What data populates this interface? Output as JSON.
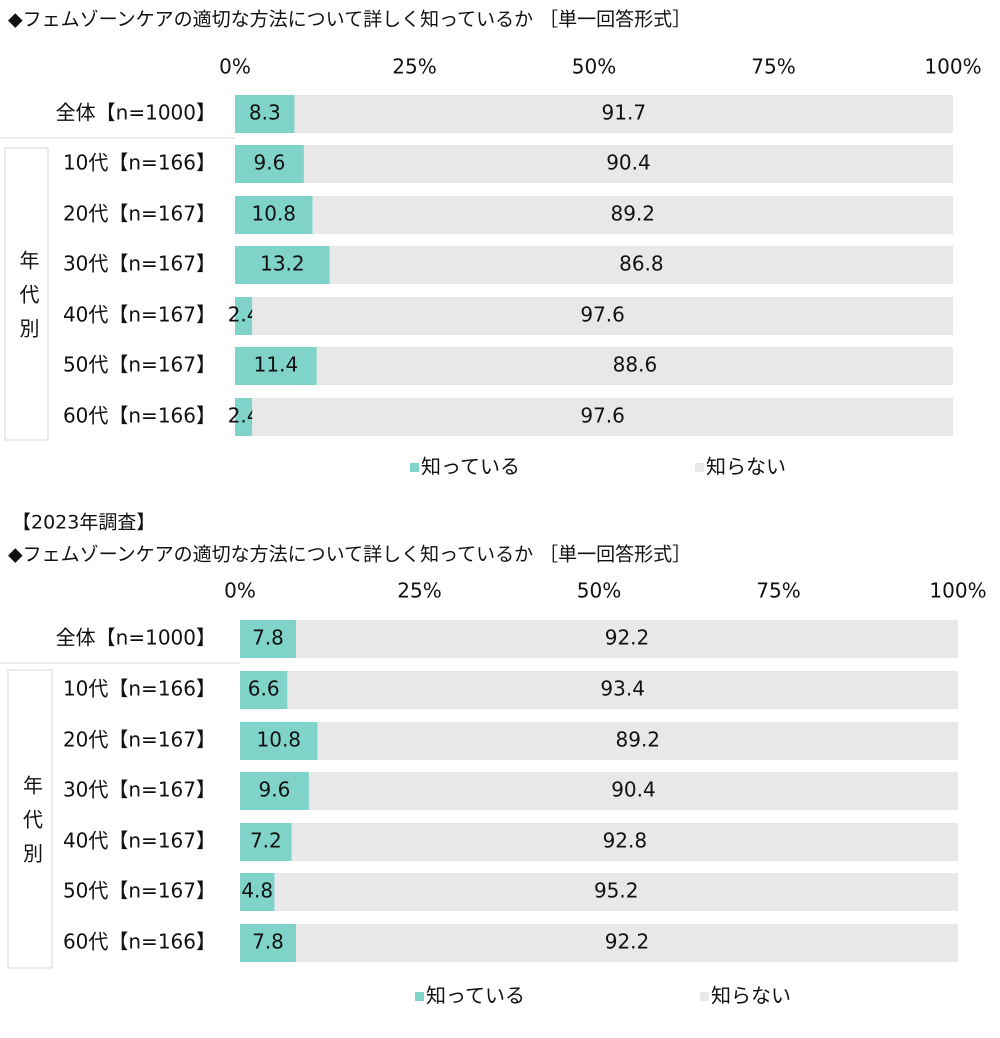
{
  "chart_data": [
    {
      "type": "bar",
      "orientation": "horizontal",
      "stacked": true,
      "title": "◆フェムゾーンケアの適切な方法について詳しく知っているか ［単一回答形式］",
      "group_label": "年代別",
      "categories": [
        "全体【n=1000】",
        "10代【n=166】",
        "20代【n=167】",
        "30代【n=167】",
        "40代【n=167】",
        "50代【n=167】",
        "60代【n=166】"
      ],
      "series": [
        {
          "name": "知っている",
          "color": "#7fd3c8",
          "values": [
            8.3,
            9.6,
            10.8,
            13.2,
            2.4,
            11.4,
            2.4
          ]
        },
        {
          "name": "知らない",
          "color": "#e8e8e8",
          "values": [
            91.7,
            90.4,
            89.2,
            86.8,
            97.6,
            88.6,
            97.6
          ]
        }
      ],
      "xlim": [
        0,
        100
      ],
      "xticks": [
        {
          "value": 0,
          "label": "0%"
        },
        {
          "value": 25,
          "label": "25%"
        },
        {
          "value": 50,
          "label": "50%"
        },
        {
          "value": 75,
          "label": "75%"
        },
        {
          "value": 100,
          "label": "100%"
        }
      ],
      "legend": "bottom"
    },
    {
      "type": "bar",
      "orientation": "horizontal",
      "stacked": true,
      "subtitle": "【2023年調査】",
      "title": "◆フェムゾーンケアの適切な方法について詳しく知っているか ［単一回答形式］",
      "group_label": "年代別",
      "categories": [
        "全体【n=1000】",
        "10代【n=166】",
        "20代【n=167】",
        "30代【n=167】",
        "40代【n=167】",
        "50代【n=167】",
        "60代【n=166】"
      ],
      "series": [
        {
          "name": "知っている",
          "color": "#7fd3c8",
          "values": [
            7.8,
            6.6,
            10.8,
            9.6,
            7.2,
            4.8,
            7.8
          ]
        },
        {
          "name": "知らない",
          "color": "#e8e8e8",
          "values": [
            92.2,
            93.4,
            89.2,
            90.4,
            92.8,
            95.2,
            92.2
          ]
        }
      ],
      "xlim": [
        0,
        100
      ],
      "xticks": [
        {
          "value": 0,
          "label": "0%"
        },
        {
          "value": 25,
          "label": "25%"
        },
        {
          "value": 50,
          "label": "50%"
        },
        {
          "value": 75,
          "label": "75%"
        },
        {
          "value": 100,
          "label": "100%"
        }
      ],
      "legend": "bottom"
    }
  ]
}
